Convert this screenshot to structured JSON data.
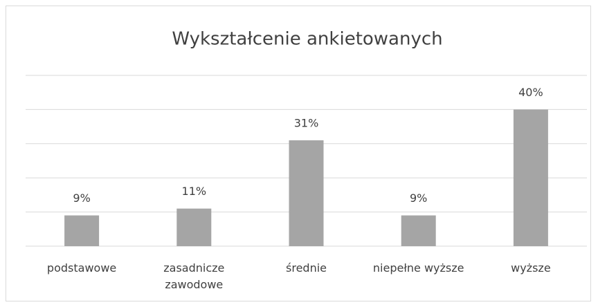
{
  "chart_data": {
    "type": "bar",
    "title": "Wykształcenie ankietowanych",
    "categories": [
      "podstawowe",
      "zasadnicze zawodowe",
      "średnie",
      "niepełne wyższe",
      "wyższe"
    ],
    "values": [
      9,
      11,
      31,
      9,
      40
    ],
    "value_labels": [
      "9%",
      "11%",
      "31%",
      "9%",
      "40%"
    ],
    "color": "#a5a5a5",
    "ylim": [
      0,
      50
    ],
    "yticks": [
      0,
      10,
      20,
      30,
      40,
      50
    ],
    "grid": true
  }
}
